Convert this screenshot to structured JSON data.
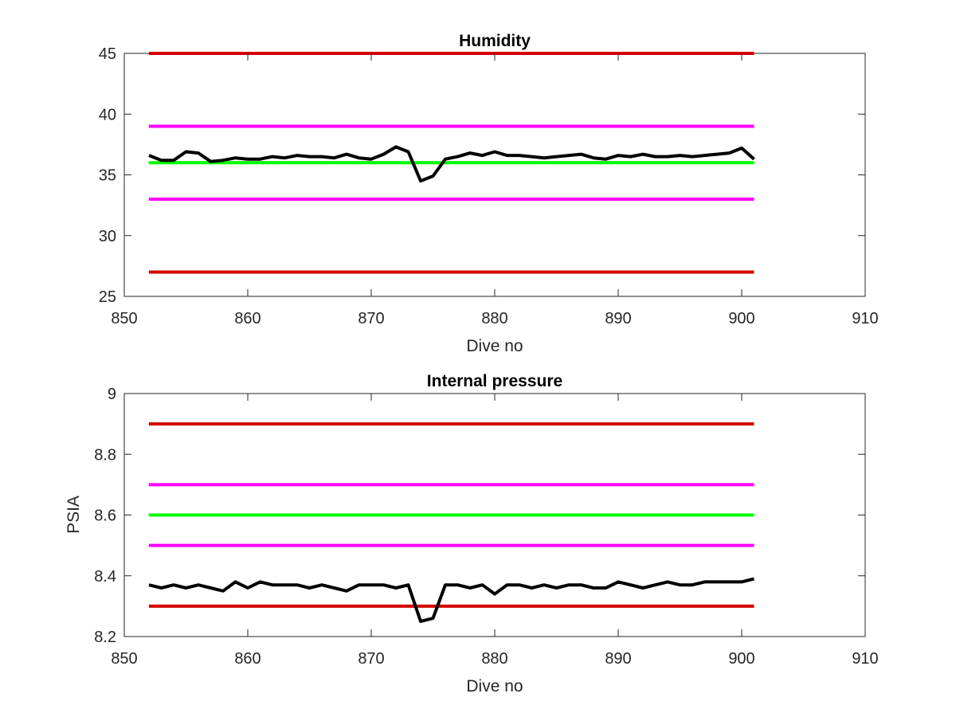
{
  "chart_data": [
    {
      "type": "line",
      "title": "Humidity",
      "xlabel": "Dive no",
      "ylabel": "",
      "xlim": [
        850,
        910
      ],
      "ylim": [
        25,
        45
      ],
      "xticks": [
        "850",
        "860",
        "870",
        "880",
        "890",
        "900",
        "910"
      ],
      "yticks": [
        "25",
        "30",
        "35",
        "40",
        "45"
      ],
      "grid": false,
      "series": [
        {
          "color": "#d40000",
          "x": [
            852,
            901
          ],
          "y": [
            45,
            45
          ]
        },
        {
          "color": "#ff00ff",
          "x": [
            852,
            901
          ],
          "y": [
            39,
            39
          ]
        },
        {
          "color": "#00ff00",
          "x": [
            852,
            901
          ],
          "y": [
            36,
            36
          ]
        },
        {
          "color": "#ff00ff",
          "x": [
            852,
            901
          ],
          "y": [
            33,
            33
          ]
        },
        {
          "color": "#d40000",
          "x": [
            852,
            901
          ],
          "y": [
            27,
            27
          ]
        },
        {
          "color": "#000000",
          "x": [
            852,
            853,
            854,
            855,
            856,
            857,
            858,
            859,
            860,
            861,
            862,
            863,
            864,
            865,
            866,
            867,
            868,
            869,
            870,
            871,
            872,
            873,
            874,
            875,
            876,
            877,
            878,
            879,
            880,
            881,
            882,
            883,
            884,
            885,
            886,
            887,
            888,
            889,
            890,
            891,
            892,
            893,
            894,
            895,
            896,
            897,
            898,
            899,
            900,
            901
          ],
          "y": [
            36.6,
            36.2,
            36.2,
            36.9,
            36.8,
            36.1,
            36.2,
            36.4,
            36.3,
            36.3,
            36.5,
            36.4,
            36.6,
            36.5,
            36.5,
            36.4,
            36.7,
            36.4,
            36.3,
            36.7,
            37.3,
            36.9,
            34.5,
            34.9,
            36.3,
            36.5,
            36.8,
            36.6,
            36.9,
            36.6,
            36.6,
            36.5,
            36.4,
            36.5,
            36.6,
            36.7,
            36.4,
            36.3,
            36.6,
            36.5,
            36.7,
            36.5,
            36.5,
            36.6,
            36.5,
            36.6,
            36.7,
            36.8,
            37.2,
            36.3
          ]
        }
      ]
    },
    {
      "type": "line",
      "title": "Internal pressure",
      "xlabel": "Dive no",
      "ylabel": "PSIA",
      "xlim": [
        850,
        910
      ],
      "ylim": [
        8.2,
        9
      ],
      "xticks": [
        "850",
        "860",
        "870",
        "880",
        "890",
        "900",
        "910"
      ],
      "yticks": [
        "8.2",
        "8.4",
        "8.6",
        "8.8",
        "9"
      ],
      "grid": false,
      "series": [
        {
          "color": "#d40000",
          "x": [
            852,
            901
          ],
          "y": [
            8.9,
            8.9
          ]
        },
        {
          "color": "#ff00ff",
          "x": [
            852,
            901
          ],
          "y": [
            8.7,
            8.7
          ]
        },
        {
          "color": "#00ff00",
          "x": [
            852,
            901
          ],
          "y": [
            8.6,
            8.6
          ]
        },
        {
          "color": "#ff00ff",
          "x": [
            852,
            901
          ],
          "y": [
            8.5,
            8.5
          ]
        },
        {
          "color": "#d40000",
          "x": [
            852,
            901
          ],
          "y": [
            8.3,
            8.3
          ]
        },
        {
          "color": "#000000",
          "x": [
            852,
            853,
            854,
            855,
            856,
            857,
            858,
            859,
            860,
            861,
            862,
            863,
            864,
            865,
            866,
            867,
            868,
            869,
            870,
            871,
            872,
            873,
            874,
            875,
            876,
            877,
            878,
            879,
            880,
            881,
            882,
            883,
            884,
            885,
            886,
            887,
            888,
            889,
            890,
            891,
            892,
            893,
            894,
            895,
            896,
            897,
            898,
            899,
            900,
            901
          ],
          "y": [
            8.37,
            8.36,
            8.37,
            8.36,
            8.37,
            8.36,
            8.35,
            8.38,
            8.36,
            8.38,
            8.37,
            8.37,
            8.37,
            8.36,
            8.37,
            8.36,
            8.35,
            8.37,
            8.37,
            8.37,
            8.36,
            8.37,
            8.25,
            8.26,
            8.37,
            8.37,
            8.36,
            8.37,
            8.34,
            8.37,
            8.37,
            8.36,
            8.37,
            8.36,
            8.37,
            8.37,
            8.36,
            8.36,
            8.38,
            8.37,
            8.36,
            8.37,
            8.38,
            8.37,
            8.37,
            8.38,
            8.38,
            8.38,
            8.38,
            8.39
          ]
        }
      ]
    }
  ]
}
